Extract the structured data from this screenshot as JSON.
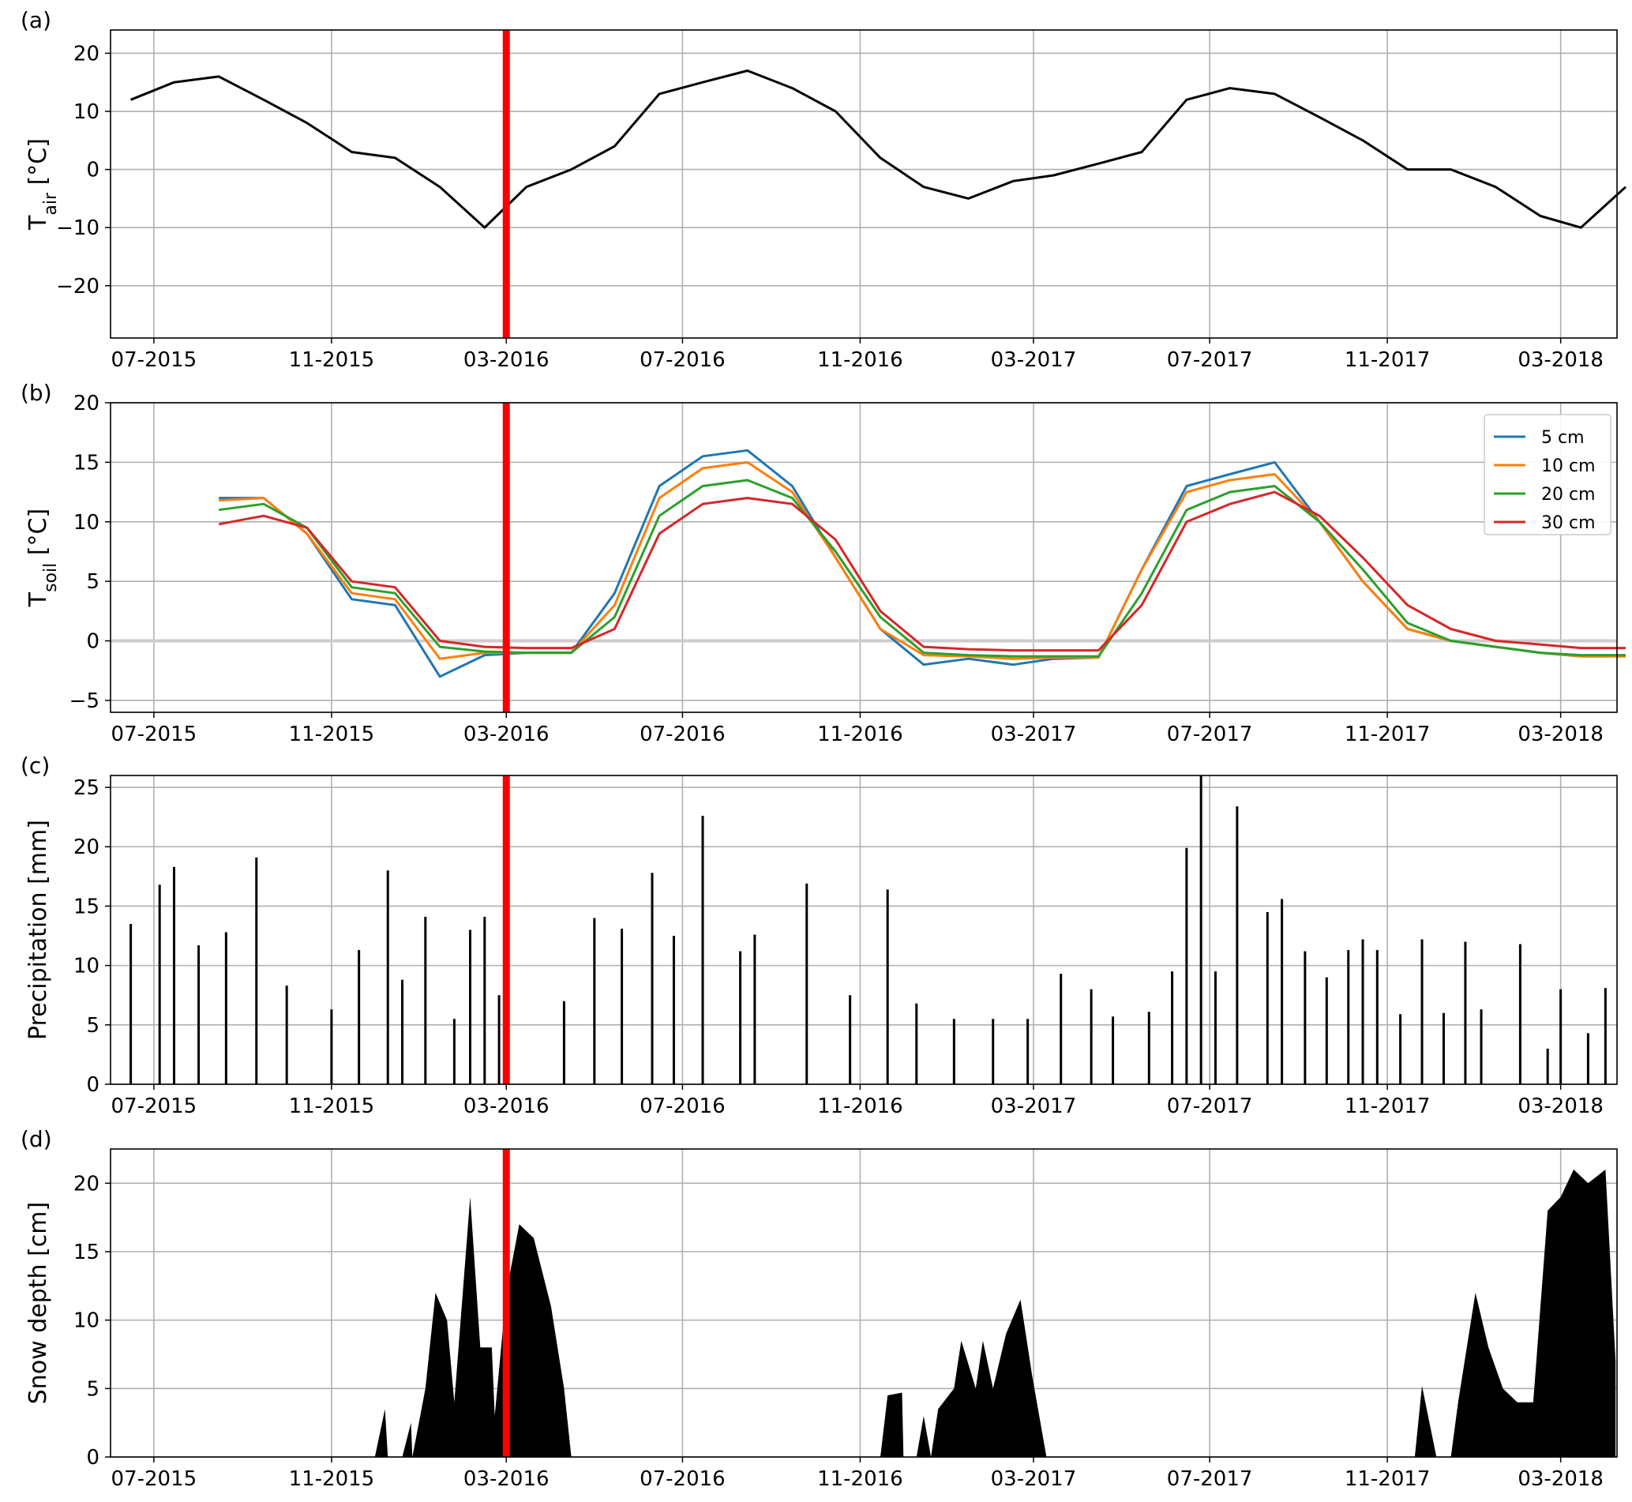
{
  "figure": {
    "x_ticks": [
      "07-2015",
      "11-2015",
      "03-2016",
      "07-2016",
      "11-2016",
      "03-2017",
      "07-2017",
      "11-2017",
      "03-2018"
    ],
    "marker_date": "03-2016",
    "marker_color": "#ff0000"
  },
  "chart_data": [
    {
      "panel": "(a)",
      "type": "line",
      "ylabel_main": "T",
      "ylabel_sub": "air",
      "ylabel_unit": " [°C]",
      "ylim": [
        -29,
        24
      ],
      "yticks": [
        -20,
        -10,
        0,
        10,
        20
      ],
      "grid": true,
      "x": [
        "2015-06",
        "2015-07",
        "2015-08",
        "2015-09",
        "2015-10",
        "2015-11",
        "2015-12",
        "2016-01",
        "2016-02",
        "2016-03",
        "2016-04",
        "2016-05",
        "2016-06",
        "2016-07",
        "2016-08",
        "2016-09",
        "2016-10",
        "2016-11",
        "2016-12",
        "2017-01",
        "2017-02",
        "2017-03",
        "2017-04",
        "2017-05",
        "2017-06",
        "2017-07",
        "2017-08",
        "2017-09",
        "2017-10",
        "2017-11",
        "2017-12",
        "2018-01",
        "2018-02",
        "2018-03",
        "2018-04"
      ],
      "series": [
        {
          "color": "#000000",
          "values": [
            12,
            15,
            16,
            12,
            8,
            3,
            2,
            -3,
            -10,
            -3,
            0,
            4,
            13,
            15,
            17,
            14,
            10,
            2,
            -3,
            -5,
            -2,
            -1,
            1,
            3,
            12,
            14,
            13,
            9,
            5,
            0,
            0,
            -3,
            -8,
            -10,
            -3
          ]
        }
      ]
    },
    {
      "panel": "(b)",
      "type": "line",
      "ylabel_main": "T",
      "ylabel_sub": "soil",
      "ylabel_unit": " [°C]",
      "ylim": [
        -6,
        20
      ],
      "yticks": [
        -5,
        0,
        5,
        10,
        15,
        20
      ],
      "grid": true,
      "zero_line_color": "#cccccc",
      "legend_position": "top-right",
      "x": [
        "2015-08",
        "2015-09",
        "2015-10",
        "2015-11",
        "2015-12",
        "2016-01",
        "2016-02",
        "2016-03",
        "2016-04",
        "2016-05",
        "2016-06",
        "2016-07",
        "2016-08",
        "2016-09",
        "2016-10",
        "2016-11",
        "2016-12",
        "2017-01",
        "2017-02",
        "2017-03",
        "2017-04",
        "2017-05",
        "2017-06",
        "2017-07",
        "2017-08",
        "2017-09",
        "2017-10",
        "2017-11",
        "2017-12",
        "2018-01",
        "2018-02",
        "2018-03",
        "2018-04"
      ],
      "series": [
        {
          "name": "5 cm",
          "color": "#1f77b4",
          "values": [
            12,
            12,
            9,
            3.5,
            3,
            -3,
            -1.2,
            -1,
            -1,
            4,
            13,
            15.5,
            16,
            13,
            7,
            1,
            -2,
            -1.5,
            -2,
            -1.5,
            -1.4,
            6,
            13,
            14,
            15,
            10,
            5,
            1,
            0,
            -0.5,
            -1,
            -1.3,
            -1.3
          ]
        },
        {
          "name": "10 cm",
          "color": "#ff7f0e",
          "values": [
            11.8,
            12,
            9,
            4,
            3.5,
            -1.5,
            -1,
            -1,
            -1,
            3,
            12,
            14.5,
            15,
            12.5,
            7,
            1,
            -1.2,
            -1.3,
            -1.5,
            -1.4,
            -1.4,
            6,
            12.5,
            13.5,
            14,
            10,
            5,
            1,
            0,
            -0.5,
            -1,
            -1.3,
            -1.3
          ]
        },
        {
          "name": "20 cm",
          "color": "#2ca02c",
          "values": [
            11,
            11.5,
            9.5,
            4.5,
            4,
            -0.5,
            -0.9,
            -1,
            -1,
            2,
            10.5,
            13,
            13.5,
            12,
            7.5,
            2,
            -1,
            -1.2,
            -1.3,
            -1.3,
            -1.3,
            4,
            11,
            12.5,
            13,
            10,
            6,
            1.5,
            0,
            -0.5,
            -1,
            -1.2,
            -1.2
          ]
        },
        {
          "name": "30 cm",
          "color": "#d62728",
          "values": [
            9.8,
            10.5,
            9.5,
            5,
            4.5,
            0,
            -0.5,
            -0.6,
            -0.6,
            1,
            9,
            11.5,
            12,
            11.5,
            8.5,
            2.5,
            -0.5,
            -0.7,
            -0.8,
            -0.8,
            -0.8,
            3,
            10,
            11.5,
            12.5,
            10.5,
            7,
            3,
            1,
            0,
            -0.3,
            -0.6,
            -0.6
          ]
        }
      ]
    },
    {
      "panel": "(c)",
      "type": "bar",
      "ylabel": "Precipitation [mm]",
      "ylim": [
        0,
        26
      ],
      "yticks": [
        0,
        5,
        10,
        15,
        20,
        25
      ],
      "grid": true,
      "bar_color": "#000000",
      "series": [
        {
          "x": [
            "2015-06-15",
            "2015-07-05",
            "2015-07-15",
            "2015-08-01",
            "2015-08-20",
            "2015-09-10",
            "2015-10-01",
            "2015-11-01",
            "2015-11-20",
            "2015-12-10",
            "2015-12-20",
            "2016-01-05",
            "2016-01-25",
            "2016-02-05",
            "2016-02-15",
            "2016-02-25",
            "2016-04-10",
            "2016-05-01",
            "2016-05-20",
            "2016-06-10",
            "2016-06-25",
            "2016-07-15",
            "2016-08-10",
            "2016-08-20",
            "2016-09-25",
            "2016-10-25",
            "2016-11-20",
            "2016-12-10",
            "2017-01-05",
            "2017-02-01",
            "2017-02-25",
            "2017-03-20",
            "2017-04-10",
            "2017-04-25",
            "2017-05-20",
            "2017-06-05",
            "2017-06-15",
            "2017-06-25",
            "2017-07-05",
            "2017-07-20",
            "2017-08-10",
            "2017-08-20",
            "2017-09-05",
            "2017-09-20",
            "2017-10-05",
            "2017-10-15",
            "2017-10-25",
            "2017-11-10",
            "2017-11-25",
            "2017-12-10",
            "2017-12-25",
            "2018-01-05",
            "2018-02-01",
            "2018-02-20",
            "2018-03-01",
            "2018-03-20",
            "2018-04-01"
          ],
          "values": [
            13.5,
            16.8,
            18.3,
            11.7,
            12.8,
            19.1,
            8.3,
            6.3,
            11.3,
            18.0,
            8.8,
            14.1,
            5.5,
            13.0,
            14.1,
            7.5,
            7.0,
            14.0,
            13.1,
            17.8,
            12.5,
            22.6,
            11.2,
            12.6,
            16.9,
            7.5,
            16.4,
            6.8,
            5.5,
            5.5,
            5.5,
            9.3,
            8.0,
            5.7,
            6.1,
            9.5,
            19.9,
            26.0,
            9.5,
            23.4,
            14.5,
            15.6,
            11.2,
            9.0,
            11.3,
            12.2,
            11.3,
            5.9,
            12.2,
            6.0,
            12.0,
            6.3,
            11.8,
            3.0,
            8.0,
            4.3,
            8.1
          ]
        }
      ]
    },
    {
      "panel": "(d)",
      "type": "area",
      "ylabel": "Snow depth [cm]",
      "ylim": [
        0,
        22.5
      ],
      "yticks": [
        0,
        5,
        10,
        15,
        20
      ],
      "grid": true,
      "fill_color": "#000000",
      "x": [
        "2015-06-01",
        "2015-12-01",
        "2015-12-08",
        "2015-12-10",
        "2015-12-20",
        "2015-12-26",
        "2015-12-27",
        "2016-01-05",
        "2016-01-12",
        "2016-01-20",
        "2016-01-25",
        "2016-02-05",
        "2016-02-12",
        "2016-02-20",
        "2016-02-22",
        "2016-03-01",
        "2016-03-10",
        "2016-03-20",
        "2016-04-01",
        "2016-04-10",
        "2016-04-15",
        "2016-11-15",
        "2016-11-20",
        "2016-11-30",
        "2016-12-01",
        "2016-12-10",
        "2016-12-15",
        "2016-12-20",
        "2016-12-25",
        "2017-01-05",
        "2017-01-10",
        "2017-01-20",
        "2017-01-25",
        "2017-02-01",
        "2017-02-10",
        "2017-02-20",
        "2017-02-28",
        "2017-03-10",
        "2017-03-15",
        "2017-10-25",
        "2017-11-01",
        "2017-11-20",
        "2017-11-25",
        "2017-12-05",
        "2017-12-15",
        "2017-12-20",
        "2018-01-01",
        "2018-01-10",
        "2018-01-20",
        "2018-01-30",
        "2018-02-10",
        "2018-02-20",
        "2018-03-01",
        "2018-03-10",
        "2018-03-20",
        "2018-04-01",
        "2018-04-08"
      ],
      "values": [
        0,
        0,
        3.5,
        0,
        0,
        2.5,
        0,
        5,
        12,
        10,
        4,
        19,
        8,
        8,
        3,
        12,
        17,
        16,
        11,
        5,
        0,
        0,
        4.5,
        4.7,
        0,
        0,
        3,
        0,
        3.5,
        5,
        8.5,
        5,
        8.5,
        5,
        9,
        11.5,
        6,
        0,
        0,
        0,
        0,
        0,
        5.2,
        0,
        0,
        4,
        12,
        8,
        5,
        4,
        4,
        18,
        19,
        21,
        20,
        21,
        7
      ]
    }
  ]
}
